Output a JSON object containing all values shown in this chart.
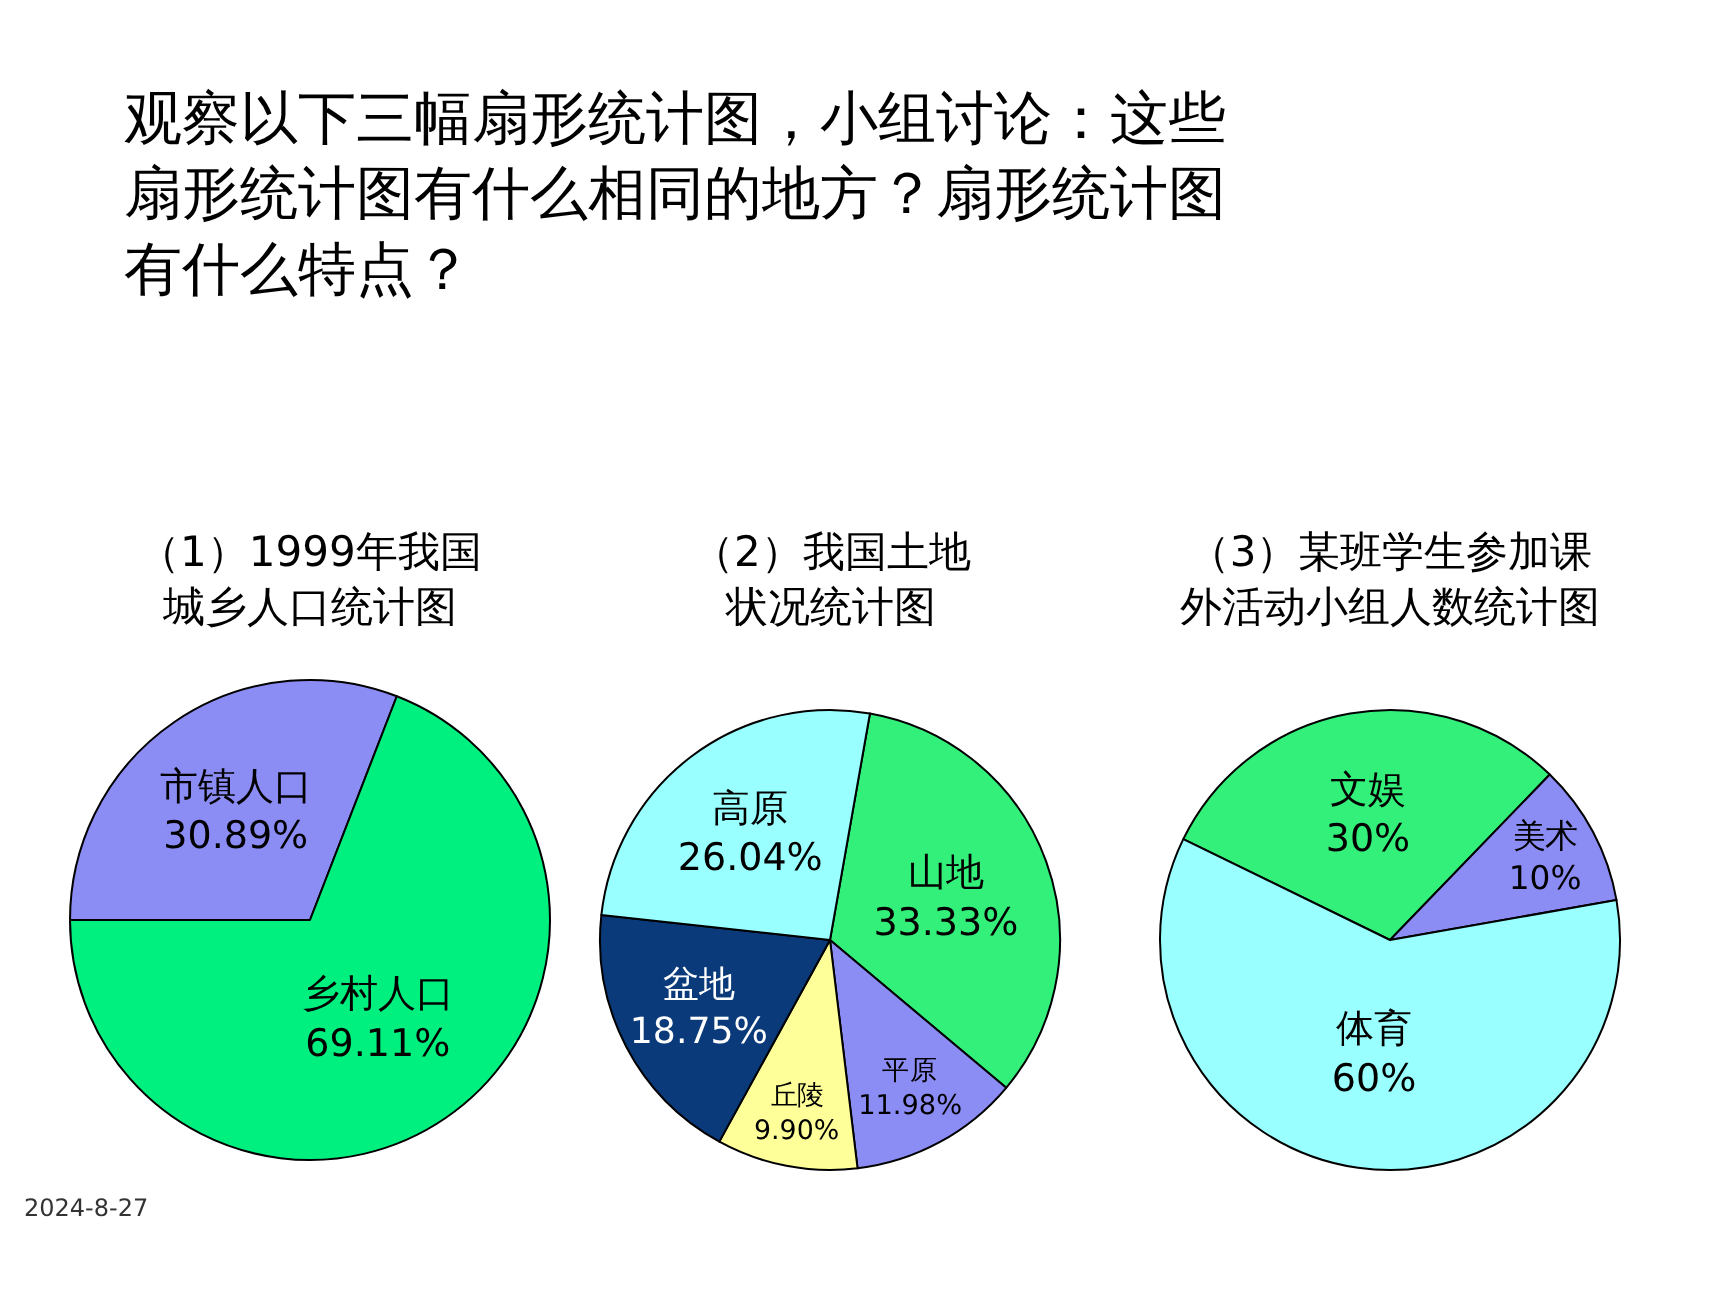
{
  "chart_data": [
    {
      "type": "pie",
      "title": "（1）1999年我国城乡人口统计图",
      "categories": [
        "市镇人口",
        "乡村人口"
      ],
      "values": [
        30.89,
        69.11
      ],
      "colors": [
        "#8c8cf5",
        "#00f080"
      ],
      "value_labels": [
        "30.89%",
        "69.11%"
      ],
      "annotations": [
        "观察以下三幅扇形统计图，小组讨论：这些扇形统计图有什么相同的地方？扇形统计图有什么特点？",
        "2024-8-27"
      ]
    },
    {
      "type": "pie",
      "title": "（2）我国土地状况统计图",
      "categories": [
        "山地",
        "平原",
        "丘陵",
        "盆地",
        "高原"
      ],
      "values": [
        33.33,
        11.98,
        9.9,
        18.75,
        26.04
      ],
      "colors": [
        "#33f07a",
        "#8c8cf5",
        "#ffff99",
        "#0a3a7a",
        "#99ffff"
      ],
      "value_labels": [
        "33.33%",
        "11.98%",
        "9.90%",
        "18.75%",
        "26.04%"
      ]
    },
    {
      "type": "pie",
      "title": "（3）某班学生参加课外活动小组人数统计图",
      "categories": [
        "文娱",
        "美术",
        "体育"
      ],
      "values": [
        30,
        10,
        60
      ],
      "colors": [
        "#33f07a",
        "#8c8cf5",
        "#99ffff"
      ],
      "value_labels": [
        "30%",
        "10%",
        "60%"
      ]
    }
  ]
}
